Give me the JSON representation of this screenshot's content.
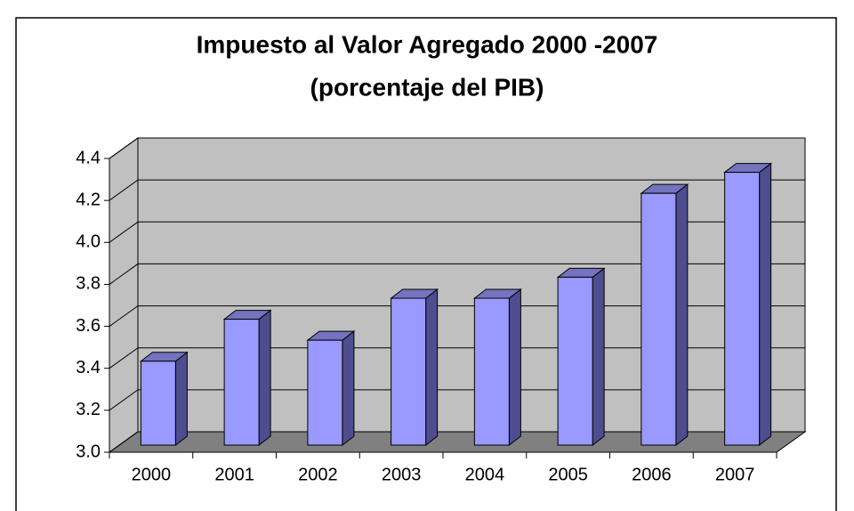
{
  "chart_data": {
    "type": "bar3d",
    "title": [
      "Impuesto al Valor Agregado 2000 -2007",
      "(porcentaje del PIB)"
    ],
    "categories": [
      "2000",
      "2001",
      "2002",
      "2003",
      "2004",
      "2005",
      "2006",
      "2007"
    ],
    "values": [
      3.4,
      3.6,
      3.5,
      3.7,
      3.7,
      3.8,
      4.2,
      4.3
    ],
    "color": "#9999ff",
    "ylim": [
      3.0,
      4.4
    ],
    "yticks": [
      {
        "value": 3.0,
        "label": "3.0"
      },
      3.2,
      3.4,
      3.6,
      3.8,
      {
        "value": 4.0,
        "label": "4.0"
      },
      4.2,
      4.4
    ],
    "grid": true
  }
}
